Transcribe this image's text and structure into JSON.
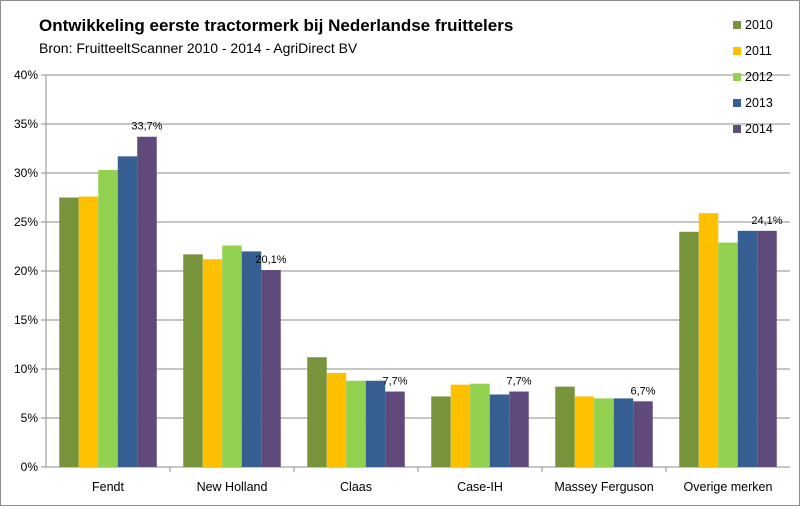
{
  "chart_data": {
    "type": "bar",
    "title": "Ontwikkeling eerste tractormerk bij Nederlandse fruittelers",
    "subtitle": "Bron: FruitteeltScanner 2010 - 2014 - AgriDirect BV",
    "categories": [
      "Fendt",
      "New Holland",
      "Claas",
      "Case-IH",
      "Massey Ferguson",
      "Overige merken"
    ],
    "series": [
      {
        "name": "2010",
        "color": "#77933c",
        "values": [
          27.5,
          21.7,
          11.2,
          7.2,
          8.2,
          24.0
        ]
      },
      {
        "name": "2011",
        "color": "#ffc000",
        "values": [
          27.6,
          21.2,
          9.6,
          8.4,
          7.2,
          25.9
        ]
      },
      {
        "name": "2012",
        "color": "#92d050",
        "values": [
          30.3,
          22.6,
          8.8,
          8.5,
          7.0,
          22.9
        ]
      },
      {
        "name": "2013",
        "color": "#376092",
        "values": [
          31.7,
          22.0,
          8.8,
          7.4,
          7.0,
          24.1
        ]
      },
      {
        "name": "2014",
        "color": "#604a7b",
        "values": [
          33.7,
          20.1,
          7.7,
          7.7,
          6.7,
          24.1
        ]
      }
    ],
    "data_labels": [
      "33,7%",
      "20,1%",
      "7,7%",
      "7,7%",
      "6,7%",
      "24,1%"
    ],
    "y_ticks": [
      "0%",
      "5%",
      "10%",
      "15%",
      "20%",
      "25%",
      "30%",
      "35%",
      "40%"
    ],
    "ylim": [
      0,
      40
    ],
    "grid": true,
    "legend_position": "right"
  }
}
